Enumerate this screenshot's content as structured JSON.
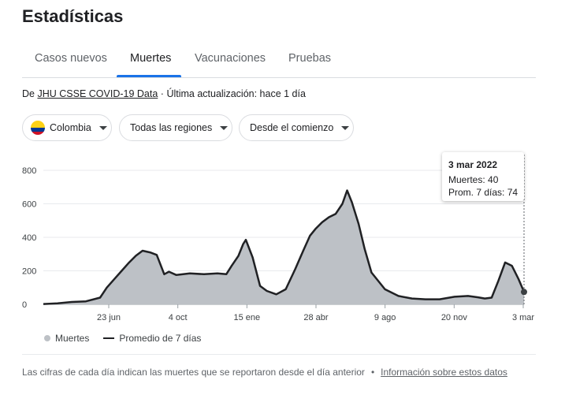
{
  "page": {
    "title": "Estadísticas"
  },
  "tabs": [
    {
      "label": "Casos nuevos"
    },
    {
      "label": "Muertes",
      "active": true
    },
    {
      "label": "Vacunaciones"
    },
    {
      "label": "Pruebas"
    }
  ],
  "source": {
    "prefix": "De",
    "link": "JHU CSSE COVID-19 Data",
    "separator": "·",
    "update": "Última actualización: hace 1 día"
  },
  "filters": {
    "country": "Colombia",
    "region": "Todas las regiones",
    "period": "Desde el comienzo"
  },
  "tooltip": {
    "date": "3 mar 2022",
    "deaths": "Muertes: 40",
    "avg": "Prom. 7 días: 74"
  },
  "legend": {
    "bars": "Muertes",
    "line": "Promedio de 7 días"
  },
  "footer": {
    "note": "Las cifras de cada día indican las muertes que se reportaron desde el día anterior",
    "separator": "•",
    "link": "Información sobre estos datos"
  },
  "colors": {
    "accent": "#1a73e8",
    "area": "#bdc1c6",
    "line": "#202124"
  },
  "chart_data": {
    "type": "area",
    "title": "",
    "xlabel": "",
    "ylabel": "",
    "ylim": [
      0,
      800
    ],
    "yticks": [
      0,
      200,
      400,
      600,
      800
    ],
    "xticks": [
      "23 jun",
      "4 oct",
      "15 ene",
      "28 abr",
      "9 ago",
      "20 nov",
      "3 mar"
    ],
    "series": [
      {
        "name": "Promedio de 7 días",
        "x": [
          "2020-03-21",
          "2020-04-11",
          "2020-05-02",
          "2020-05-23",
          "2020-06-13",
          "2020-06-23",
          "2020-07-04",
          "2020-07-15",
          "2020-07-25",
          "2020-08-05",
          "2020-08-15",
          "2020-08-26",
          "2020-09-05",
          "2020-09-16",
          "2020-09-23",
          "2020-10-04",
          "2020-10-24",
          "2020-11-14",
          "2020-12-04",
          "2020-12-17",
          "2020-12-25",
          "2021-01-04",
          "2021-01-11",
          "2021-01-15",
          "2021-01-25",
          "2021-02-05",
          "2021-02-15",
          "2021-03-01",
          "2021-03-15",
          "2021-03-29",
          "2021-04-10",
          "2021-04-20",
          "2021-04-28",
          "2021-05-08",
          "2021-05-18",
          "2021-05-28",
          "2021-06-07",
          "2021-06-14",
          "2021-06-21",
          "2021-07-01",
          "2021-07-10",
          "2021-07-20",
          "2021-08-09",
          "2021-08-29",
          "2021-09-18",
          "2021-10-08",
          "2021-10-29",
          "2021-11-20",
          "2021-12-10",
          "2021-12-25",
          "2022-01-04",
          "2022-01-14",
          "2022-01-24",
          "2022-02-03",
          "2022-02-13",
          "2022-02-23",
          "2022-03-03"
        ],
        "values": [
          2,
          6,
          14,
          18,
          40,
          100,
          150,
          200,
          245,
          290,
          320,
          310,
          295,
          180,
          195,
          175,
          185,
          180,
          185,
          180,
          230,
          290,
          360,
          385,
          280,
          110,
          80,
          60,
          90,
          210,
          320,
          410,
          450,
          490,
          520,
          540,
          600,
          680,
          610,
          480,
          330,
          190,
          90,
          50,
          35,
          30,
          30,
          45,
          50,
          42,
          35,
          40,
          140,
          250,
          230,
          150,
          74
        ]
      }
    ]
  }
}
